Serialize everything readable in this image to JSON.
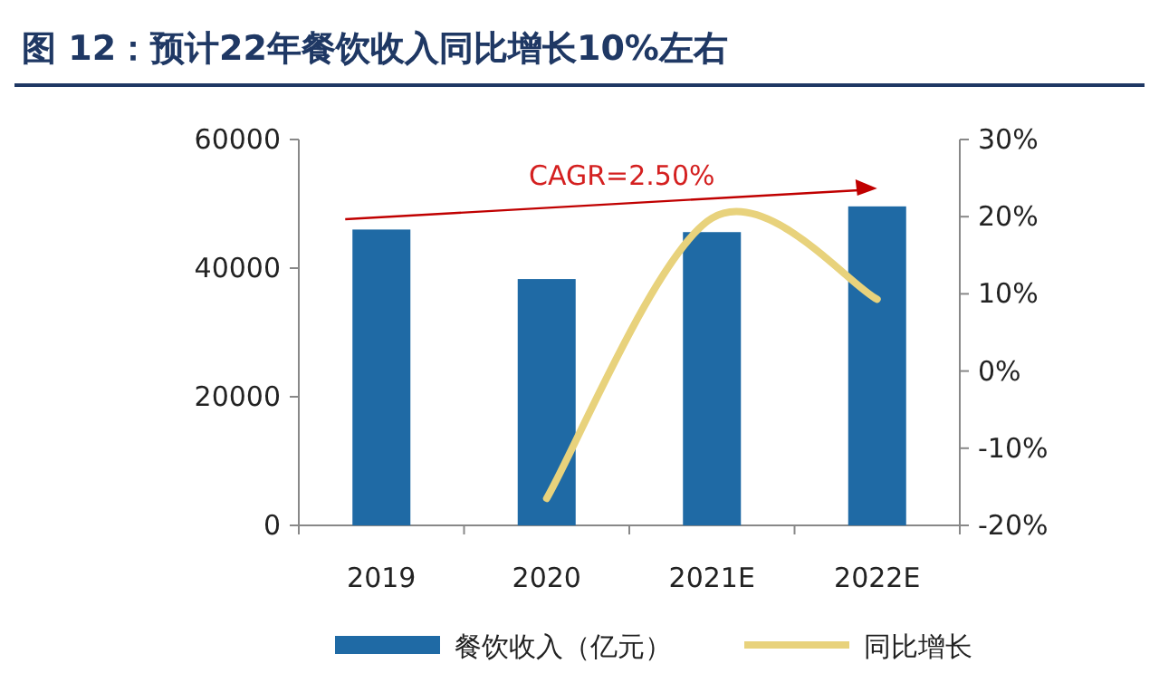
{
  "chart_data": {
    "type": "bar",
    "title": "图 12：预计22年餐饮收入同比增长10%左右",
    "categories": [
      "2019",
      "2020",
      "2021E",
      "2022E"
    ],
    "series": [
      {
        "name": "餐饮收入（亿元）",
        "color": "#1f6aa5",
        "values": [
          46000,
          38300,
          45600,
          49600
        ]
      },
      {
        "name": "同比增长",
        "type": "line",
        "axis": "y2",
        "color": "#e8d27c",
        "values": [
          null,
          -16.5,
          19.8,
          9.3
        ]
      }
    ],
    "ylim": [
      0,
      60000
    ],
    "yticks": [
      0,
      20000,
      40000,
      60000
    ],
    "y2lim": [
      -20,
      30
    ],
    "y2ticks": [
      {
        "value": -20,
        "label": "-20%"
      },
      {
        "value": -10,
        "label": "-10%"
      },
      {
        "value": 0,
        "label": "0%"
      },
      {
        "value": 10,
        "label": "10%"
      },
      {
        "value": 20,
        "label": "20%"
      },
      {
        "value": 30,
        "label": "30%"
      }
    ],
    "annotations": [
      "CAGR=2.50%"
    ],
    "legend": "bottom",
    "grid": false
  }
}
